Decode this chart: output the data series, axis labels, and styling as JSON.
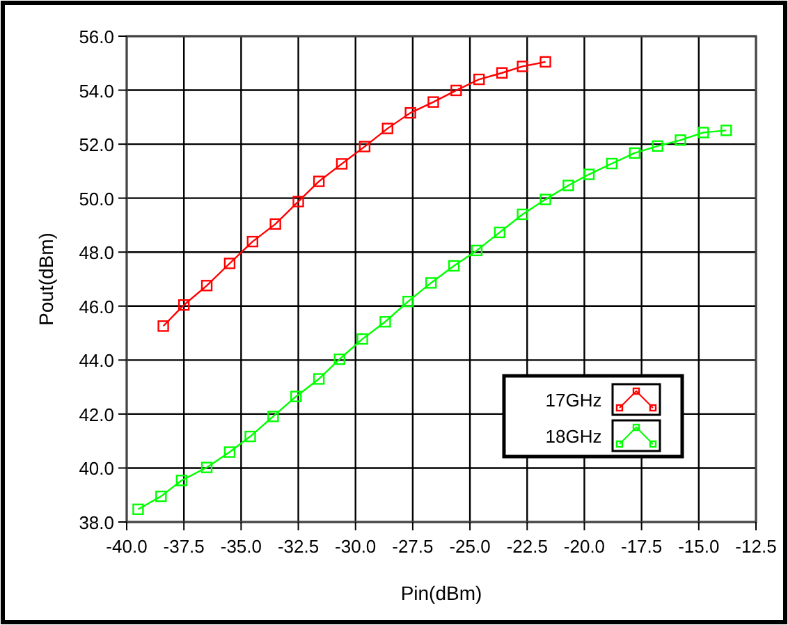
{
  "chart_data": {
    "type": "line",
    "xlabel": "Pin(dBm)",
    "ylabel": "Pout(dBm)",
    "xlim": [
      -40,
      -12.5
    ],
    "xticks": [
      {
        "value": -40,
        "label": "-40.0"
      },
      {
        "value": -37.5,
        "label": "-37.5"
      },
      {
        "value": -35,
        "label": "-35.0"
      },
      {
        "value": -32.5,
        "label": "-32.5"
      },
      {
        "value": -30,
        "label": "-30.0"
      },
      {
        "value": -27.5,
        "label": "-27.5"
      },
      {
        "value": -25,
        "label": "-25.0"
      },
      {
        "value": -22.5,
        "label": "-22.5"
      },
      {
        "value": -20,
        "label": "-20.0"
      },
      {
        "value": -17.5,
        "label": "-17.5"
      },
      {
        "value": -15,
        "label": "-15.0"
      },
      {
        "value": -12.5,
        "label": "-12.5"
      }
    ],
    "ylim": [
      38,
      56
    ],
    "yticks": [
      {
        "value": 38,
        "label": "38.0"
      },
      {
        "value": 40,
        "label": "40.0"
      },
      {
        "value": 42,
        "label": "42.0"
      },
      {
        "value": 44,
        "label": "44.0"
      },
      {
        "value": 46,
        "label": "46.0"
      },
      {
        "value": 48,
        "label": "48.0"
      },
      {
        "value": 50,
        "label": "50.0"
      },
      {
        "value": 52,
        "label": "52.0"
      },
      {
        "value": 54,
        "label": "54.0"
      },
      {
        "value": 56,
        "label": "56.0"
      }
    ],
    "grid": true,
    "legend": "bottom right",
    "marker": "square",
    "line_style": "solid",
    "series": [
      {
        "name": "17GHz",
        "color": "#ff0000",
        "x": [
          -38.4,
          -37.5,
          -36.5,
          -35.5,
          -34.5,
          -33.5,
          -32.5,
          -31.6,
          -30.6,
          -29.6,
          -28.6,
          -27.6,
          -26.6,
          -25.6,
          -24.6,
          -23.6,
          -22.7,
          -21.7
        ],
        "values": [
          45.26,
          46.04,
          46.76,
          47.58,
          48.39,
          49.04,
          49.87,
          50.62,
          51.27,
          51.91,
          52.58,
          53.16,
          53.56,
          53.99,
          54.4,
          54.64,
          54.88,
          55.05
        ]
      },
      {
        "name": "18GHz",
        "color": "#00ff00",
        "x": [
          -39.5,
          -38.5,
          -37.6,
          -36.5,
          -35.5,
          -34.6,
          -33.6,
          -32.6,
          -31.6,
          -30.7,
          -29.7,
          -28.7,
          -27.7,
          -26.7,
          -25.7,
          -24.7,
          -23.7,
          -22.7,
          -21.7,
          -20.7,
          -19.8,
          -18.8,
          -17.8,
          -16.8,
          -15.8,
          -14.8,
          -13.8
        ],
        "values": [
          38.47,
          38.95,
          39.54,
          40.02,
          40.59,
          41.17,
          41.91,
          42.65,
          43.3,
          44.03,
          44.78,
          45.42,
          46.17,
          46.86,
          47.49,
          48.06,
          48.73,
          49.4,
          49.95,
          50.47,
          50.88,
          51.28,
          51.67,
          51.93,
          52.15,
          52.43,
          52.51
        ]
      }
    ]
  }
}
